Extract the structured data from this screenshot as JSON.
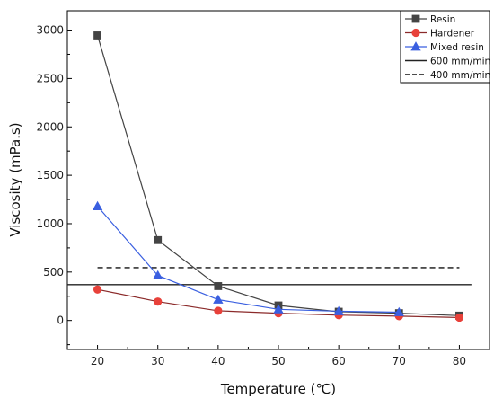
{
  "chart_data": {
    "type": "line",
    "title": "",
    "xlabel": "Temperature (℃)",
    "ylabel": "Viscosity (mPa.s)",
    "xlim": [
      15,
      85
    ],
    "ylim": [
      -300,
      3200
    ],
    "xticks": [
      20,
      30,
      40,
      50,
      60,
      70,
      80
    ],
    "yticks": [
      0,
      500,
      1000,
      1500,
      2000,
      2500,
      3000
    ],
    "grid": false,
    "legend_position": "top-right",
    "series": [
      {
        "name": "Resin",
        "marker": "square",
        "color": "#444444",
        "x": [
          20,
          30,
          40,
          50,
          60,
          70,
          80
        ],
        "y": [
          2945,
          830,
          355,
          155,
          90,
          75,
          50
        ]
      },
      {
        "name": "Hardener",
        "marker": "circle",
        "color": "#e8413a",
        "line_color": "#8b2a2a",
        "x": [
          20,
          30,
          40,
          50,
          60,
          70,
          80
        ],
        "y": [
          320,
          195,
          100,
          75,
          55,
          45,
          30
        ]
      },
      {
        "name": "Mixed resin",
        "marker": "triangle",
        "color": "#3a5fe0",
        "x": [
          20,
          30,
          40,
          50,
          60,
          70
        ],
        "y": [
          1180,
          465,
          215,
          115,
          95,
          85
        ]
      }
    ],
    "reference_lines": [
      {
        "name": "600 mm/min",
        "style": "solid",
        "color": "#222222",
        "y": 370,
        "x_range": [
          15,
          82
        ]
      },
      {
        "name": "400 mm/min",
        "style": "dashed",
        "color": "#111111",
        "y": 545,
        "x_range": [
          20,
          80
        ]
      }
    ]
  }
}
